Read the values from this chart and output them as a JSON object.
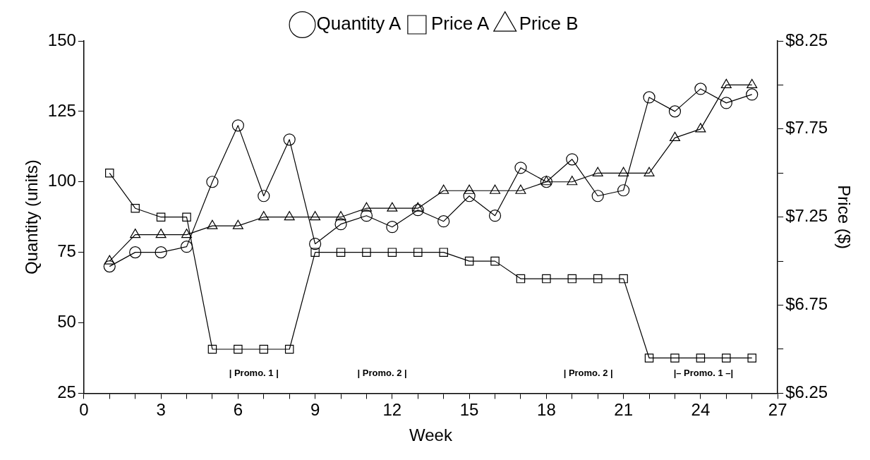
{
  "chart_data": {
    "type": "line",
    "xlabel": "Week",
    "ylabel": "Quantity (units)",
    "y2label": "Price ($)",
    "legend": "top",
    "grid": false,
    "x": [
      1,
      2,
      3,
      4,
      5,
      6,
      7,
      8,
      9,
      10,
      11,
      12,
      13,
      14,
      15,
      16,
      17,
      18,
      19,
      20,
      21,
      22,
      23,
      24,
      25,
      26
    ],
    "series": [
      {
        "name": "Quantity A",
        "color": "#000000",
        "marker": "circle",
        "values": [
          70,
          75,
          75,
          77,
          100,
          120,
          95,
          115,
          78,
          85,
          88,
          84,
          90,
          86,
          95,
          88,
          105,
          100,
          108,
          95,
          97,
          130,
          125,
          133,
          128,
          131
        ]
      },
      {
        "name": "Price A",
        "color": "#000000",
        "marker": "square",
        "axis": "y2",
        "values": [
          7.5,
          7.3,
          7.25,
          7.25,
          6.5,
          6.5,
          6.5,
          6.5,
          7.05,
          7.05,
          7.05,
          7.05,
          7.05,
          7.05,
          7.0,
          7.0,
          6.9,
          6.9,
          6.9,
          6.9,
          6.9,
          6.45,
          6.45,
          6.45,
          6.45,
          6.45
        ]
      },
      {
        "name": "Price B",
        "color": "#000000",
        "marker": "triangle",
        "axis": "y2",
        "values": [
          7.0,
          7.15,
          7.15,
          7.15,
          7.2,
          7.2,
          7.25,
          7.25,
          7.25,
          7.25,
          7.3,
          7.3,
          7.3,
          7.4,
          7.4,
          7.4,
          7.4,
          7.45,
          7.45,
          7.5,
          7.5,
          7.5,
          7.7,
          7.75,
          8.0,
          8.0
        ]
      }
    ],
    "xlim": [
      0,
      27
    ],
    "xticks": [
      0,
      {
        "value": 1,
        "label": null
      },
      {
        "value": 2,
        "label": null
      },
      3,
      {
        "value": 4,
        "label": null
      },
      {
        "value": 5,
        "label": null
      },
      6,
      {
        "value": 7,
        "label": null
      },
      {
        "value": 8,
        "label": null
      },
      9,
      {
        "value": 10,
        "label": null
      },
      {
        "value": 11,
        "label": null
      },
      12,
      {
        "value": 13,
        "label": null
      },
      {
        "value": 14,
        "label": null
      },
      15,
      {
        "value": 16,
        "label": null
      },
      {
        "value": 17,
        "label": null
      },
      18,
      {
        "value": 19,
        "label": null
      },
      {
        "value": 20,
        "label": null
      },
      21,
      {
        "value": 22,
        "label": null
      },
      {
        "value": 23,
        "label": null
      },
      24,
      {
        "value": 25,
        "label": null
      },
      {
        "value": 26,
        "label": null
      },
      27
    ],
    "ylim": [
      25,
      150
    ],
    "yticks": [
      25,
      50,
      75,
      100,
      125,
      150
    ],
    "y2lim": [
      6.25,
      8.25
    ],
    "y2ticks": [
      {
        "value": 6.25,
        "label": "$6.25"
      },
      {
        "value": 6.5,
        "label": null
      },
      {
        "value": 6.75,
        "label": "$6.75"
      },
      {
        "value": 7.0,
        "label": null
      },
      {
        "value": 7.25,
        "label": "$7.25"
      },
      {
        "value": 7.5,
        "label": null
      },
      {
        "value": 7.75,
        "label": "$7.75"
      },
      {
        "value": 8.0,
        "label": null
      },
      {
        "value": 8.25,
        "label": "$8.25"
      }
    ],
    "annotations": [
      "| Promo. 1 |",
      "| Promo. 2 |",
      "| Promo. 2 |",
      "|– Promo. 1 –|"
    ]
  }
}
